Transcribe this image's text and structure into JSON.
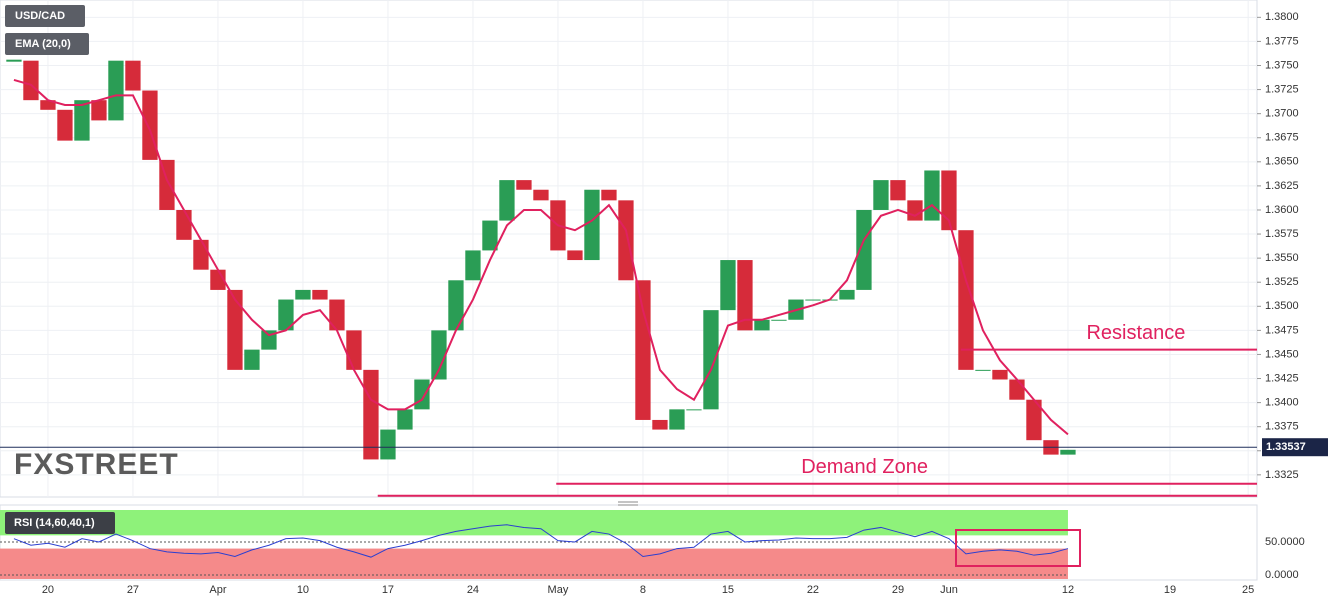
{
  "chart_data": [
    {
      "type": "candle-line",
      "title": "USD/CAD",
      "watermark": "FXSTREET",
      "x": [
        -2,
        -1,
        0,
        1,
        2,
        3,
        4,
        5,
        6,
        7,
        8,
        9,
        10,
        11,
        12,
        13,
        14,
        15,
        16,
        17,
        18,
        19,
        20,
        21,
        22,
        23,
        24,
        25,
        26,
        27,
        28,
        29,
        30,
        31,
        32,
        33,
        34,
        35,
        36,
        37,
        38,
        39,
        40,
        41,
        42,
        43,
        44,
        45,
        46,
        47,
        48,
        49,
        50,
        51,
        52,
        53,
        54,
        55,
        56,
        57,
        58,
        59,
        60
      ],
      "series": [
        {
          "name": "USD/CAD",
          "color": "#2a9d55",
          "down_color": "#d62b3a",
          "values": [
            1.3755,
            1.3714,
            1.3704,
            1.3672,
            1.3714,
            1.3693,
            1.3755,
            1.3724,
            1.3652,
            1.36,
            1.3569,
            1.3538,
            1.3517,
            1.3434,
            1.3455,
            1.3475,
            1.3507,
            1.3517,
            1.3507,
            1.3475,
            1.3434,
            1.3341,
            1.3372,
            1.3393,
            1.3424,
            1.3475,
            1.3527,
            1.3558,
            1.3589,
            1.3631,
            1.3621,
            1.361,
            1.3558,
            1.3548,
            1.3621,
            1.361,
            1.3527,
            1.3382,
            1.3372,
            1.3393,
            1.3393,
            1.3496,
            1.3548,
            1.3475,
            1.3486,
            1.3486,
            1.3507,
            1.3507,
            1.3507,
            1.3517,
            1.36,
            1.3631,
            1.361,
            1.3589,
            1.3641,
            1.3579,
            1.3434,
            1.3434,
            1.3424,
            1.3403,
            1.3361,
            1.3346,
            1.3351
          ]
        },
        {
          "name": "EMA (20,0)",
          "color": "#e0215f",
          "values": [
            1.3735,
            1.373,
            1.3714,
            1.3709,
            1.3709,
            1.3714,
            1.3719,
            1.3719,
            1.3683,
            1.3631,
            1.36,
            1.3569,
            1.3538,
            1.3507,
            1.3486,
            1.347,
            1.3475,
            1.3491,
            1.3496,
            1.3475,
            1.3434,
            1.3403,
            1.3393,
            1.3393,
            1.3403,
            1.3434,
            1.3475,
            1.3507,
            1.3548,
            1.3584,
            1.36,
            1.36,
            1.3584,
            1.3579,
            1.3589,
            1.3605,
            1.3579,
            1.3496,
            1.3434,
            1.3414,
            1.3403,
            1.3434,
            1.348,
            1.3486,
            1.3486,
            1.3491,
            1.3496,
            1.3501,
            1.3507,
            1.3527,
            1.3569,
            1.3594,
            1.36,
            1.3594,
            1.3605,
            1.3589,
            1.3527,
            1.3475,
            1.3444,
            1.3424,
            1.3403,
            1.3382,
            1.3367
          ]
        }
      ],
      "xlim": [
        -2.82,
        71.12
      ],
      "xticks": [
        {
          "value": 0,
          "label": "20"
        },
        {
          "value": 5,
          "label": "27"
        },
        {
          "value": 10,
          "label": "Apr"
        },
        {
          "value": 15,
          "label": "10"
        },
        {
          "value": 20,
          "label": "17"
        },
        {
          "value": 25,
          "label": "24"
        },
        {
          "value": 30,
          "label": "May"
        },
        {
          "value": 35,
          "label": "8"
        },
        {
          "value": 40,
          "label": "15"
        },
        {
          "value": 45,
          "label": "22"
        },
        {
          "value": 50,
          "label": "29"
        },
        {
          "value": 53,
          "label": "Jun"
        },
        {
          "value": 60,
          "label": "12"
        },
        {
          "value": 66,
          "label": "19"
        },
        {
          "value": 70.6,
          "label": "25"
        }
      ],
      "ylim": [
        1.3302,
        1.3818
      ],
      "yticks": [
        {
          "value": 1.3325,
          "label": "1.3325"
        },
        {
          "value": 1.335,
          "label": "1.3350"
        },
        {
          "value": 1.3375,
          "label": "1.3375"
        },
        {
          "value": 1.34,
          "label": "1.3400"
        },
        {
          "value": 1.3425,
          "label": "1.3425"
        },
        {
          "value": 1.345,
          "label": "1.3450"
        },
        {
          "value": 1.3475,
          "label": "1.3475"
        },
        {
          "value": 1.35,
          "label": "1.3500"
        },
        {
          "value": 1.3525,
          "label": "1.3525"
        },
        {
          "value": 1.355,
          "label": "1.3550"
        },
        {
          "value": 1.3575,
          "label": "1.3575"
        },
        {
          "value": 1.36,
          "label": "1.3600"
        },
        {
          "value": 1.3625,
          "label": "1.3625"
        },
        {
          "value": 1.365,
          "label": "1.3650"
        },
        {
          "value": 1.3675,
          "label": "1.3675"
        },
        {
          "value": 1.37,
          "label": "1.3700"
        },
        {
          "value": 1.3725,
          "label": "1.3725"
        },
        {
          "value": 1.375,
          "label": "1.3750"
        },
        {
          "value": 1.3775,
          "label": "1.3775"
        },
        {
          "value": 1.38,
          "label": "1.3800"
        }
      ],
      "grid": true,
      "last_price": {
        "value": 1.33537,
        "label": "1.33537"
      },
      "levels": [
        {
          "text": "Resistance",
          "value": 1.3455,
          "start": 53.7,
          "color": "#e0215f"
        },
        {
          "text": "Demand Zone",
          "value": 1.33157,
          "start": 29.9,
          "color": "#e0215f"
        },
        {
          "value": 1.33033,
          "start": 19.4,
          "color": "#e0215f"
        }
      ]
    },
    {
      "type": "rsi",
      "title": "RSI (14,60,40,1)",
      "values": [
        55,
        45,
        48,
        42,
        55,
        50,
        62,
        52,
        40,
        35,
        33,
        32,
        34,
        28,
        38,
        45,
        55,
        56,
        52,
        42,
        35,
        27,
        40,
        45,
        52,
        60,
        66,
        70,
        74,
        76,
        72,
        70,
        52,
        50,
        66,
        62,
        48,
        28,
        32,
        40,
        42,
        62,
        66,
        50,
        52,
        53,
        56,
        55,
        55,
        57,
        68,
        72,
        65,
        58,
        66,
        55,
        32,
        36,
        38,
        36,
        30,
        33,
        40
      ],
      "color": "#2b3fd0",
      "ylim": [
        -7.6,
        106
      ],
      "yticks": [
        {
          "value": 50,
          "label": "50.0000"
        },
        {
          "value": 0,
          "label": "0.0000"
        }
      ],
      "upper": 60,
      "lower": 40,
      "upper_color": "#8ef27a",
      "lower_color": "#f58a8a"
    }
  ]
}
